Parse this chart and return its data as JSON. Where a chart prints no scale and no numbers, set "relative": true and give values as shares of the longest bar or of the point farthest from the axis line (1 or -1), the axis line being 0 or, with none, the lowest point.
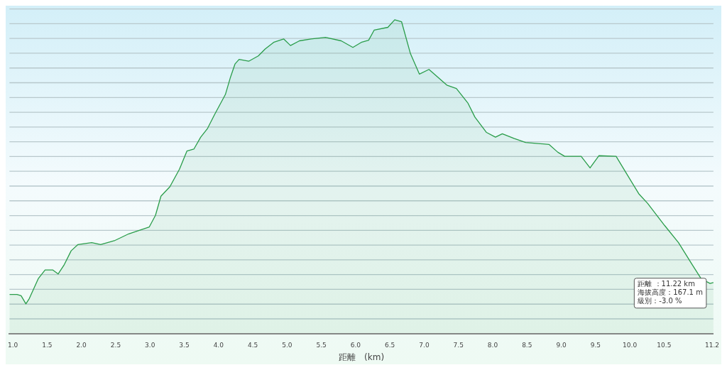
{
  "chart_data": {
    "type": "area",
    "relative": true,
    "xlabel": "距離　(km)",
    "xlim": [
      0.95,
      11.22
    ],
    "xticks": [
      {
        "value": 1,
        "label": "1.0"
      },
      1.5,
      {
        "value": 2,
        "label": "2.0"
      },
      2.5,
      {
        "value": 3,
        "label": "3.0"
      },
      3.5,
      {
        "value": 4,
        "label": "4.0"
      },
      4.5,
      {
        "value": 5,
        "label": "5.0"
      },
      5.5,
      {
        "value": 6,
        "label": "6.0"
      },
      6.5,
      {
        "value": 7,
        "label": "7.0"
      },
      7.5,
      {
        "value": 8,
        "label": "8.0"
      },
      8.5,
      {
        "value": 9,
        "label": "9.0"
      },
      9.5,
      {
        "value": 10,
        "label": "10.0"
      },
      10.5,
      11.2
    ],
    "grid": "y",
    "legend": false,
    "tick_labels": "x",
    "annotations": [
      "距離 ：11.22 km\n海拔高度：167.1 m\n級別：-3.0 %"
    ],
    "series": [
      {
        "color": "#2a9d4a",
        "x": [
          0.95,
          1.06,
          1.12,
          1.19,
          1.24,
          1.37,
          1.47,
          1.58,
          1.66,
          1.75,
          1.85,
          1.95,
          2.15,
          2.28,
          2.48,
          2.69,
          2.99,
          3.08,
          3.16,
          3.29,
          3.43,
          3.54,
          3.64,
          3.74,
          3.84,
          3.94,
          4.1,
          4.17,
          4.24,
          4.3,
          4.44,
          4.58,
          4.68,
          4.81,
          4.95,
          5.05,
          5.18,
          5.35,
          5.56,
          5.79,
          5.96,
          6.09,
          6.19,
          6.27,
          6.47,
          6.57,
          6.67,
          6.8,
          6.93,
          7.07,
          7.33,
          7.47,
          7.64,
          7.74,
          7.91,
          8.04,
          8.14,
          8.31,
          8.48,
          8.82,
          8.95,
          9.05,
          9.29,
          9.42,
          9.55,
          9.8,
          9.93,
          10.13,
          10.26,
          10.51,
          10.71,
          10.91,
          11.04,
          11.17,
          11.22
        ],
        "values": [
          0.125,
          0.125,
          0.121,
          0.095,
          0.112,
          0.175,
          0.203,
          0.203,
          0.19,
          0.22,
          0.264,
          0.284,
          0.29,
          0.284,
          0.296,
          0.318,
          0.34,
          0.377,
          0.438,
          0.468,
          0.524,
          0.582,
          0.588,
          0.626,
          0.654,
          0.697,
          0.762,
          0.814,
          0.859,
          0.874,
          0.868,
          0.885,
          0.907,
          0.929,
          0.939,
          0.918,
          0.933,
          0.939,
          0.944,
          0.933,
          0.912,
          0.929,
          0.935,
          0.967,
          0.976,
          1,
          0.994,
          0.892,
          0.827,
          0.842,
          0.792,
          0.781,
          0.734,
          0.69,
          0.641,
          0.626,
          0.637,
          0.622,
          0.609,
          0.603,
          0.578,
          0.565,
          0.565,
          0.528,
          0.567,
          0.565,
          0.518,
          0.446,
          0.415,
          0.344,
          0.29,
          0.22,
          0.175,
          0.16,
          0.163
        ]
      }
    ]
  }
}
